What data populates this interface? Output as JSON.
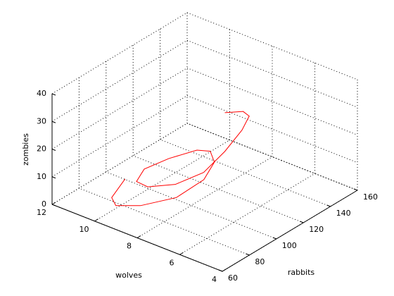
{
  "chart_data": {
    "type": "line3d",
    "xlabel": "rabbits",
    "ylabel": "wolves",
    "zlabel": "zombies",
    "xlim": [
      60,
      160
    ],
    "ylim": [
      4,
      12
    ],
    "zlim": [
      0,
      40
    ],
    "xticks": [
      60,
      80,
      100,
      120,
      140,
      160
    ],
    "yticks": [
      4,
      6,
      8,
      10,
      12
    ],
    "zticks": [
      0,
      10,
      20,
      30,
      40
    ],
    "grid": true,
    "series": [
      {
        "color": "#ff0000",
        "x": [
          98.3,
          80.5,
          75.7,
          82.9,
          98.4,
          118.8,
          132.9,
          137.7,
          132.6,
          118.1,
          103.0,
          89.4,
          86.7,
          94.5,
          107.6,
          123.3,
          136.0,
          138.2,
          133.7,
          123.3
        ],
        "y": [
          11.0,
          10.5,
          10.0,
          9.3,
          8.6,
          8.6,
          9.0,
          9.5,
          9.8,
          10.2,
          10.4,
          9.9,
          9.2,
          8.4,
          7.9,
          7.9,
          7.9,
          7.7,
          7.7,
          7.9
        ],
        "z": [
          1,
          1,
          1,
          1,
          1.5,
          2,
          3,
          4,
          5,
          5,
          5,
          6,
          7,
          8,
          10,
          13,
          17,
          22,
          25,
          27
        ]
      }
    ]
  }
}
